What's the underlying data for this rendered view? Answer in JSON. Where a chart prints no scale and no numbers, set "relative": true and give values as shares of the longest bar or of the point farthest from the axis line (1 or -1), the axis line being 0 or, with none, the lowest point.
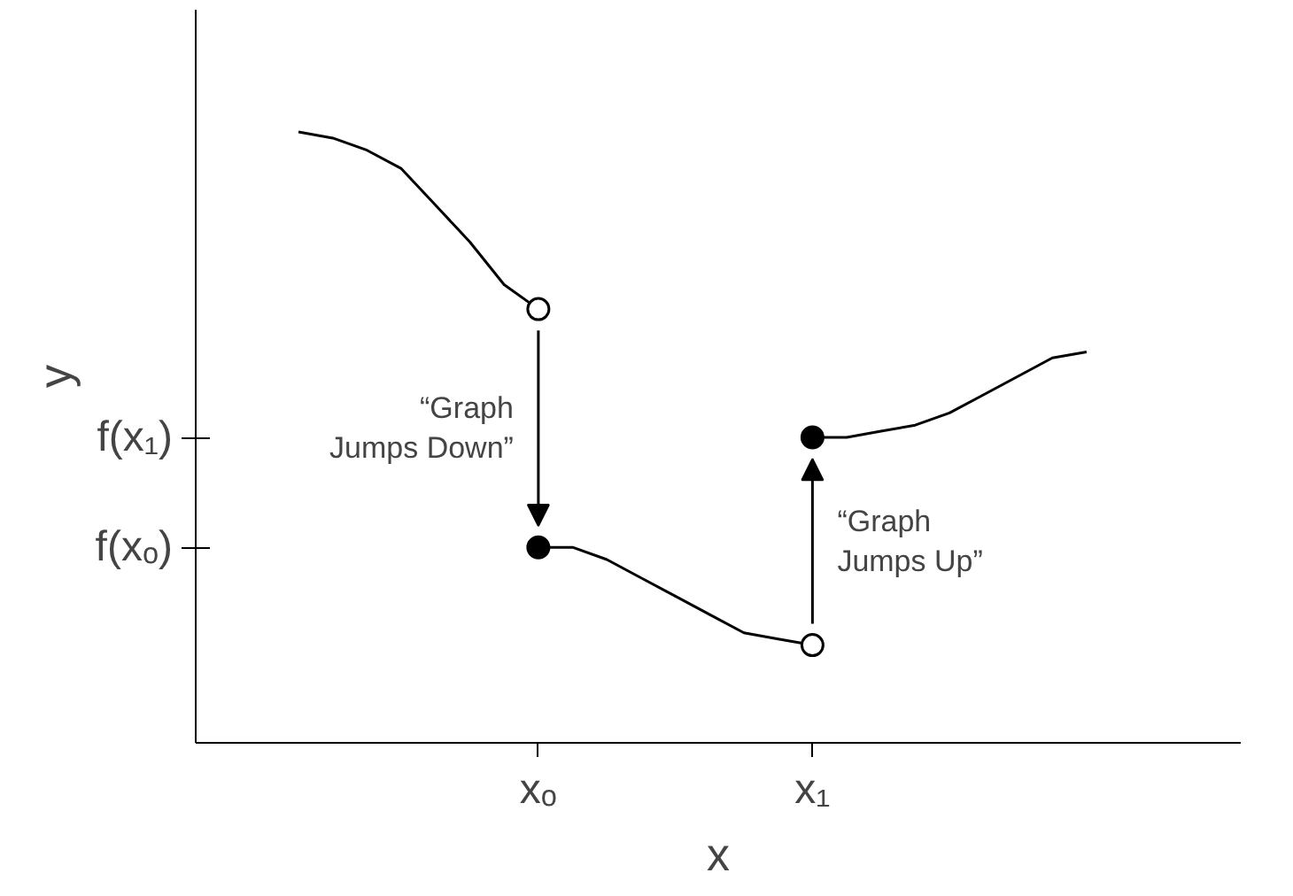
{
  "chart_data": {
    "type": "line",
    "relative": true,
    "xlabel": "x",
    "ylabel": "y",
    "grid": false,
    "line_style": "solid",
    "categories": [
      null,
      null,
      null,
      null,
      null,
      null,
      null,
      null,
      null,
      null,
      "xₒ",
      null,
      null,
      null,
      null,
      null,
      null,
      null,
      "x₁",
      null,
      null,
      null,
      null,
      null,
      null,
      null,
      null,
      null,
      null,
      null
    ],
    "series": [
      {
        "color": "#000000",
        "values": [
          null,
          null,
          null,
          1,
          0.99,
          0.97,
          0.94,
          0.88,
          0.82,
          0.75,
          0.71,
          null,
          null,
          null,
          null,
          null,
          null,
          null,
          null,
          null,
          null,
          null,
          null,
          null,
          null,
          null,
          null,
          null,
          null,
          null
        ]
      },
      {
        "color": "#000000",
        "values": [
          null,
          null,
          null,
          null,
          null,
          null,
          null,
          null,
          null,
          null,
          0.32,
          0.32,
          0.3,
          0.27,
          0.24,
          0.21,
          0.18,
          0.17,
          0.16,
          null,
          null,
          null,
          null,
          null,
          null,
          null,
          null,
          null,
          null,
          null
        ]
      },
      {
        "color": "#000000",
        "values": [
          null,
          null,
          null,
          null,
          null,
          null,
          null,
          null,
          null,
          null,
          null,
          null,
          null,
          null,
          null,
          null,
          null,
          null,
          0.5,
          0.5,
          0.51,
          0.52,
          0.54,
          0.57,
          0.6,
          0.63,
          0.64,
          null,
          null,
          null
        ]
      },
      {
        "type": "scatter",
        "marker": "circle",
        "color": "#000000",
        "values": [
          null,
          null,
          null,
          null,
          null,
          null,
          null,
          null,
          null,
          null,
          0.32,
          null,
          null,
          null,
          null,
          null,
          null,
          null,
          0.5,
          null,
          null,
          null,
          null,
          null,
          null,
          null,
          null,
          null,
          null,
          null
        ]
      },
      {
        "type": "scatter",
        "marker": "circle",
        "color": "#ffffff",
        "values": [
          null,
          null,
          null,
          null,
          null,
          null,
          null,
          null,
          null,
          null,
          0.71,
          null,
          null,
          null,
          null,
          null,
          null,
          null,
          0.16,
          null,
          null,
          null,
          null,
          null,
          null,
          null,
          null,
          null,
          null,
          null
        ]
      }
    ],
    "annotations": [
      "“Graph Jumps Down”",
      "“Graph Jumps Up”",
      "f(xₒ)",
      "f(x₁)"
    ]
  }
}
